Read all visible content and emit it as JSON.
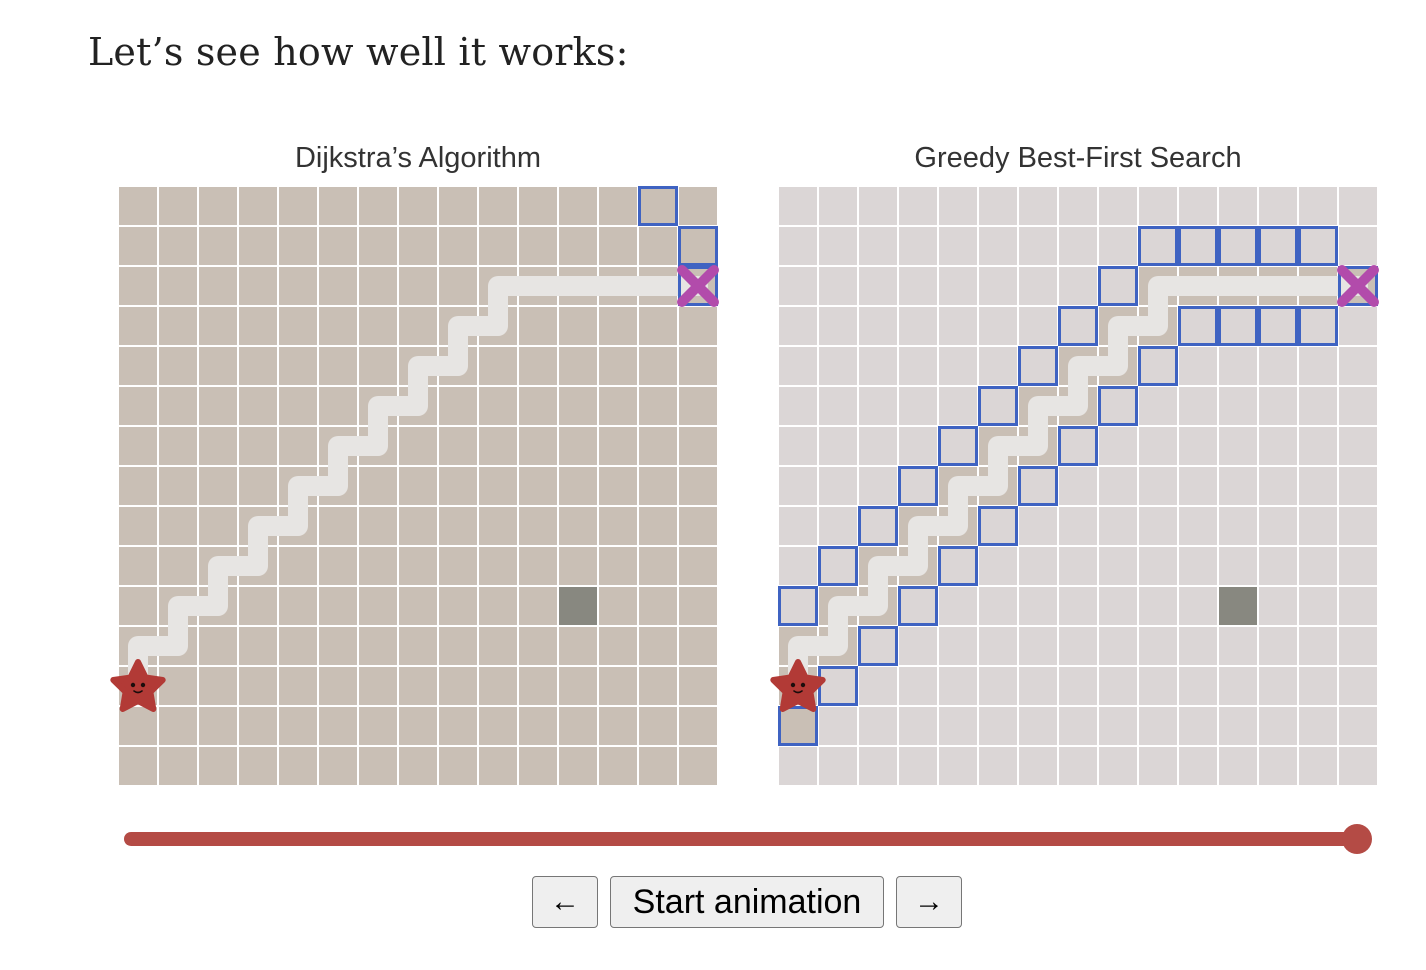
{
  "intro_text": "Let’s see how well it works:",
  "colors": {
    "visited": "#c9bfb5",
    "unvisited": "#dbd6d6",
    "grid_line": "#ffffff",
    "frontier": "#3f63c2",
    "path": "#e7e5e3",
    "wall": "#888880",
    "goal": "#b24bab",
    "start": "#b23a36",
    "slider": "#b44b45"
  },
  "grid": {
    "cols": 15,
    "rows": 15,
    "start": [
      0,
      12
    ],
    "goal": [
      14,
      2
    ],
    "walls": [
      [
        11,
        10
      ]
    ],
    "path": [
      [
        0,
        12
      ],
      [
        0,
        11
      ],
      [
        1,
        11
      ],
      [
        1,
        10
      ],
      [
        2,
        10
      ],
      [
        2,
        9
      ],
      [
        3,
        9
      ],
      [
        3,
        8
      ],
      [
        4,
        8
      ],
      [
        4,
        7
      ],
      [
        5,
        7
      ],
      [
        5,
        6
      ],
      [
        6,
        6
      ],
      [
        6,
        5
      ],
      [
        7,
        5
      ],
      [
        7,
        4
      ],
      [
        8,
        4
      ],
      [
        8,
        3
      ],
      [
        9,
        3
      ],
      [
        9,
        2
      ],
      [
        10,
        2
      ],
      [
        11,
        2
      ],
      [
        12,
        2
      ],
      [
        13,
        2
      ],
      [
        14,
        2
      ]
    ]
  },
  "panels": [
    {
      "title": "Dijkstra’s Algorithm",
      "all_visited": true,
      "frontier": [
        [
          13,
          0
        ],
        [
          14,
          1
        ],
        [
          14,
          2
        ]
      ]
    },
    {
      "title": "Greedy Best-First Search",
      "all_visited": false,
      "visited": [
        [
          0,
          13
        ],
        [
          0,
          12
        ],
        [
          0,
          11
        ],
        [
          1,
          11
        ],
        [
          1,
          10
        ],
        [
          2,
          10
        ],
        [
          2,
          9
        ],
        [
          3,
          9
        ],
        [
          3,
          8
        ],
        [
          4,
          8
        ],
        [
          4,
          7
        ],
        [
          5,
          7
        ],
        [
          5,
          6
        ],
        [
          6,
          6
        ],
        [
          6,
          5
        ],
        [
          7,
          5
        ],
        [
          7,
          4
        ],
        [
          8,
          4
        ],
        [
          8,
          3
        ],
        [
          9,
          3
        ],
        [
          9,
          2
        ],
        [
          10,
          2
        ],
        [
          11,
          2
        ],
        [
          12,
          2
        ],
        [
          13,
          2
        ],
        [
          14,
          2
        ]
      ],
      "frontier": [
        [
          0,
          13
        ],
        [
          0,
          10
        ],
        [
          1,
          12
        ],
        [
          1,
          9
        ],
        [
          2,
          11
        ],
        [
          2,
          8
        ],
        [
          3,
          10
        ],
        [
          3,
          7
        ],
        [
          4,
          9
        ],
        [
          4,
          6
        ],
        [
          5,
          8
        ],
        [
          5,
          5
        ],
        [
          6,
          7
        ],
        [
          6,
          4
        ],
        [
          7,
          6
        ],
        [
          7,
          3
        ],
        [
          8,
          5
        ],
        [
          8,
          2
        ],
        [
          9,
          4
        ],
        [
          9,
          1
        ],
        [
          10,
          3
        ],
        [
          10,
          1
        ],
        [
          11,
          3
        ],
        [
          11,
          1
        ],
        [
          12,
          3
        ],
        [
          12,
          1
        ],
        [
          13,
          3
        ],
        [
          13,
          1
        ],
        [
          14,
          2
        ]
      ]
    }
  ],
  "slider": {
    "value": 1.0
  },
  "controls": {
    "prev_label": "←",
    "start_label": "Start animation",
    "next_label": "→"
  }
}
